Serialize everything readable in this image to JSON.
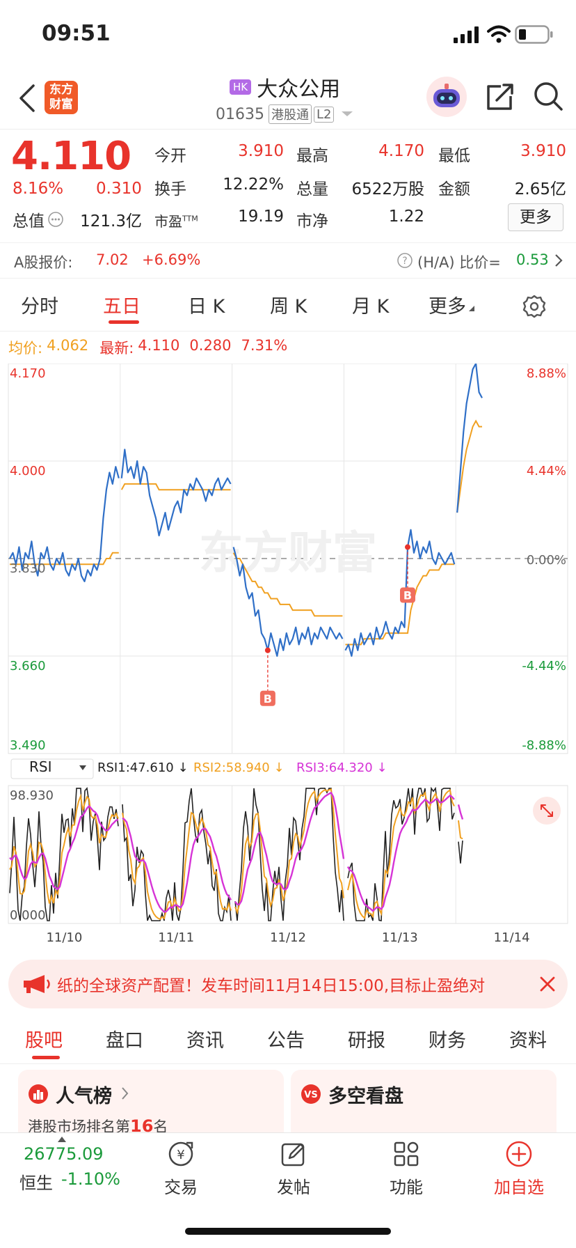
{
  "status": {
    "time": "09:51"
  },
  "nav": {
    "logo_top": "东方",
    "logo_bottom": "财富",
    "market_badge": "HK",
    "title": "大众公用",
    "code": "01635",
    "tag_connect": "港股通",
    "tag_level": "L2"
  },
  "quote": {
    "price": "4.110",
    "change_pct": "8.16%",
    "change": "0.310",
    "fields": [
      {
        "label": "今开",
        "value": "3.910"
      },
      {
        "label": "最高",
        "value": "4.170"
      },
      {
        "label": "最低",
        "value": "3.910"
      },
      {
        "label": "换手",
        "value": "12.22%"
      },
      {
        "label": "总量",
        "value": "6522万股"
      },
      {
        "label": "金额",
        "value": "2.65亿"
      },
      {
        "label": "总值",
        "value": "121.3亿"
      },
      {
        "label": "市盈",
        "sup": "TTM",
        "value": "19.19"
      },
      {
        "label": "市净",
        "value": "1.22"
      }
    ],
    "more_button": "更多"
  },
  "a_share": {
    "label": "A股报价:",
    "price": "7.02",
    "change": "+6.69%",
    "ratio_label": "(H/A) 比价=",
    "ratio_value": "0.53"
  },
  "tabs": [
    "分时",
    "五日",
    "日 K",
    "周 K",
    "月 K",
    "更多"
  ],
  "chart_info": {
    "avg_label": "均价:",
    "avg_value": "4.062",
    "latest_label": "最新:",
    "latest_value": "4.110",
    "latest_change": "0.280",
    "latest_pct": "7.31%"
  },
  "chart_data": {
    "type": "line",
    "y_ticks_left": [
      "4.170",
      "4.000",
      "3.830",
      "3.660",
      "3.490"
    ],
    "y_ticks_right": [
      "8.88%",
      "4.44%",
      "0.00%",
      "-4.44%",
      "-8.88%"
    ],
    "ylim": [
      3.49,
      4.17
    ],
    "base_price": 3.83,
    "x_labels": [
      "11/10",
      "11/11",
      "11/12",
      "11/13",
      "11/14"
    ],
    "markers": [
      {
        "label": "B",
        "day": 2
      },
      {
        "label": "B",
        "day": 3
      }
    ],
    "series": [
      {
        "day_prices": [
          [
            3.83,
            3.84,
            3.82,
            3.85,
            3.81,
            3.84,
            3.83,
            3.86,
            3.82,
            3.8,
            3.84,
            3.83,
            3.85,
            3.82,
            3.81,
            3.83,
            3.82,
            3.84,
            3.81,
            3.8,
            3.82,
            3.81,
            3.83,
            3.8,
            3.79,
            3.81,
            3.8,
            3.82,
            3.81,
            3.83,
            3.9,
            3.95,
            3.98,
            3.96,
            3.99,
            3.97
          ],
          [
            3.97,
            4.02,
            3.98,
            3.99,
            3.97,
            4.0,
            3.96,
            3.99,
            3.98,
            3.94,
            3.92,
            3.9,
            3.87,
            3.89,
            3.91,
            3.88,
            3.9,
            3.92,
            3.93,
            3.91,
            3.95,
            3.94,
            3.96,
            3.95,
            3.97,
            3.96,
            3.95,
            3.93,
            3.95,
            3.94,
            3.96,
            3.97,
            3.95,
            3.96,
            3.97,
            3.96
          ],
          [
            3.85,
            3.83,
            3.8,
            3.82,
            3.78,
            3.76,
            3.77,
            3.73,
            3.74,
            3.7,
            3.69,
            3.67,
            3.7,
            3.68,
            3.66,
            3.69,
            3.67,
            3.7,
            3.68,
            3.69,
            3.71,
            3.68,
            3.7,
            3.69,
            3.71,
            3.68,
            3.7,
            3.69,
            3.71,
            3.7,
            3.69,
            3.71,
            3.7,
            3.69,
            3.7,
            3.69
          ],
          [
            3.67,
            3.68,
            3.66,
            3.69,
            3.67,
            3.7,
            3.68,
            3.69,
            3.7,
            3.68,
            3.71,
            3.69,
            3.7,
            3.72,
            3.7,
            3.69,
            3.71,
            3.7,
            3.72,
            3.71,
            3.85,
            3.88,
            3.84,
            3.86,
            3.83,
            3.85,
            3.84,
            3.86,
            3.83,
            3.82,
            3.84,
            3.83,
            3.82,
            3.83,
            3.84,
            3.82
          ],
          [
            3.91,
            3.98,
            4.05,
            4.1,
            4.13,
            4.16,
            4.17,
            4.12,
            4.11
          ]
        ],
        "day_avg": [
          [
            3.82,
            3.82,
            3.82,
            3.82,
            3.82,
            3.82,
            3.82,
            3.82,
            3.82,
            3.82,
            3.82,
            3.82,
            3.82,
            3.82,
            3.82,
            3.82,
            3.82,
            3.82,
            3.82,
            3.82,
            3.82,
            3.82,
            3.82,
            3.82,
            3.82,
            3.82,
            3.82,
            3.82,
            3.82,
            3.82,
            3.82,
            3.83,
            3.83,
            3.84,
            3.84,
            3.84
          ],
          [
            3.95,
            3.96,
            3.96,
            3.96,
            3.96,
            3.96,
            3.96,
            3.96,
            3.96,
            3.96,
            3.96,
            3.96,
            3.95,
            3.95,
            3.95,
            3.95,
            3.95,
            3.95,
            3.95,
            3.95,
            3.95,
            3.95,
            3.95,
            3.95,
            3.95,
            3.95,
            3.95,
            3.95,
            3.95,
            3.95,
            3.95,
            3.95,
            3.95,
            3.95,
            3.95,
            3.95
          ],
          [
            3.84,
            3.83,
            3.83,
            3.82,
            3.81,
            3.8,
            3.79,
            3.79,
            3.78,
            3.78,
            3.77,
            3.77,
            3.76,
            3.76,
            3.76,
            3.75,
            3.75,
            3.75,
            3.75,
            3.74,
            3.74,
            3.74,
            3.74,
            3.74,
            3.74,
            3.74,
            3.73,
            3.73,
            3.73,
            3.73,
            3.73,
            3.73,
            3.73,
            3.73,
            3.73,
            3.73
          ],
          [
            3.68,
            3.68,
            3.68,
            3.68,
            3.68,
            3.68,
            3.69,
            3.69,
            3.69,
            3.69,
            3.69,
            3.69,
            3.69,
            3.7,
            3.7,
            3.7,
            3.7,
            3.7,
            3.7,
            3.7,
            3.7,
            3.74,
            3.76,
            3.78,
            3.79,
            3.8,
            3.8,
            3.81,
            3.81,
            3.81,
            3.81,
            3.82,
            3.82,
            3.82,
            3.82,
            3.82
          ],
          [
            3.91,
            3.95,
            3.99,
            4.02,
            4.04,
            4.06,
            4.07,
            4.06,
            4.06
          ]
        ]
      }
    ],
    "rsi": {
      "indicator": "RSI",
      "rsi1_label": "RSI1:47.610",
      "rsi2_label": "RSI2:58.940",
      "rsi3_label": "RSI3:64.320",
      "ymax_label": "98.930",
      "ymin_label": "0.000",
      "ylim": [
        0,
        98.93
      ]
    }
  },
  "banner": {
    "text": "纸的全球资产配置！发车时间11月14日15:00,目标止盈绝对"
  },
  "subtabs": [
    "股吧",
    "盘口",
    "资讯",
    "公告",
    "研报",
    "财务",
    "资料"
  ],
  "cards": {
    "left_title": "人气榜",
    "left_sub_prefix": "港股市场排名第",
    "left_sub_rank": "16",
    "left_sub_suffix": "名",
    "right_title": "多空看盘"
  },
  "bottom_bar": {
    "index_value": "26775.09",
    "index_name": "恒生",
    "index_change": "-1.10%",
    "items": [
      "交易",
      "发帖",
      "功能",
      "加自选"
    ]
  },
  "colors": {
    "red": "#e8332b",
    "green": "#1a9a3a",
    "price_line": "#2f6fc7",
    "avg_line": "#f0a020",
    "rsi1": "#222222",
    "rsi2": "#f0a020",
    "rsi3": "#d633d6"
  }
}
